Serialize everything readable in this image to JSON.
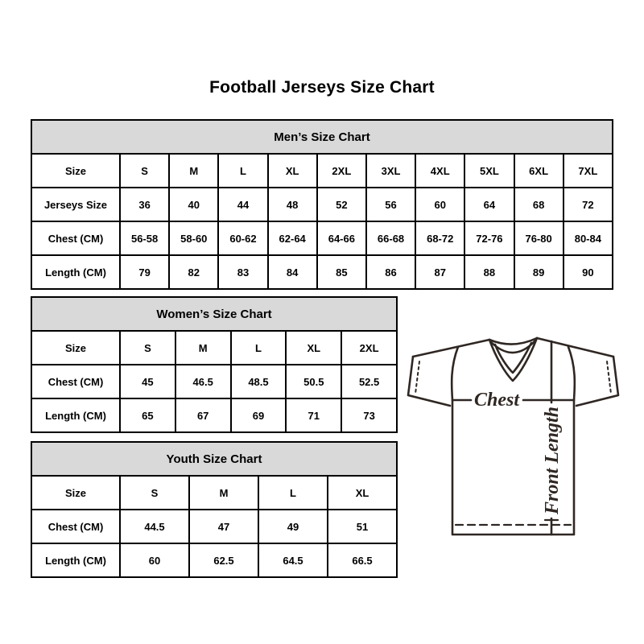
{
  "title": "Football Jerseys Size Chart",
  "tables": {
    "men": {
      "header": "Men’s Size Chart",
      "rows": [
        [
          "Size",
          "S",
          "M",
          "L",
          "XL",
          "2XL",
          "3XL",
          "4XL",
          "5XL",
          "6XL",
          "7XL"
        ],
        [
          "Jerseys Size",
          "36",
          "40",
          "44",
          "48",
          "52",
          "56",
          "60",
          "64",
          "68",
          "72"
        ],
        [
          "Chest (CM)",
          "56-58",
          "58-60",
          "60-62",
          "62-64",
          "64-66",
          "66-68",
          "68-72",
          "72-76",
          "76-80",
          "80-84"
        ],
        [
          "Length (CM)",
          "79",
          "82",
          "83",
          "84",
          "85",
          "86",
          "87",
          "88",
          "89",
          "90"
        ]
      ]
    },
    "women": {
      "header": "Women’s Size Chart",
      "rows": [
        [
          "Size",
          "S",
          "M",
          "L",
          "XL",
          "2XL"
        ],
        [
          "Chest (CM)",
          "45",
          "46.5",
          "48.5",
          "50.5",
          "52.5"
        ],
        [
          "Length (CM)",
          "65",
          "67",
          "69",
          "71",
          "73"
        ]
      ]
    },
    "youth": {
      "header": "Youth Size Chart",
      "rows": [
        [
          "Size",
          "S",
          "M",
          "L",
          "XL"
        ],
        [
          "Chest (CM)",
          "44.5",
          "47",
          "49",
          "51"
        ],
        [
          "Length (CM)",
          "60",
          "62.5",
          "64.5",
          "66.5"
        ]
      ]
    }
  },
  "diagram": {
    "chest_label": "Chest",
    "front_length_label": "Front Length",
    "line_color": "#2f2723"
  },
  "colors": {
    "table_header_bg": "#d9d9d9",
    "border": "#000000",
    "background": "#ffffff",
    "text": "#000000"
  }
}
